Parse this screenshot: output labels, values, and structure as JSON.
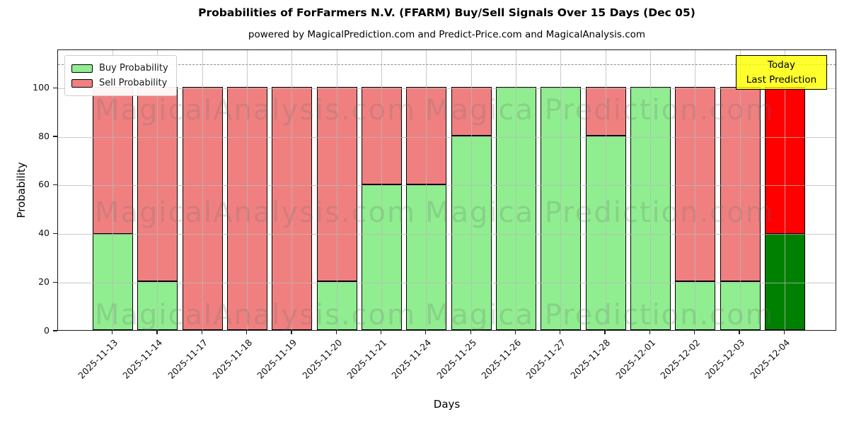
{
  "chart_data": {
    "type": "bar",
    "stacked": true,
    "title": "Probabilities of ForFarmers N.V. (FFARM) Buy/Sell Signals Over 15 Days (Dec 05)",
    "subtitle": "powered by MagicalPrediction.com and Predict-Price.com and MagicalAnalysis.com",
    "xlabel": "Days",
    "ylabel": "Probability",
    "ylim": [
      0,
      115.8
    ],
    "yticks": [
      0,
      20,
      40,
      60,
      80,
      100
    ],
    "grid": true,
    "dashed_line_y": 110,
    "legend_position": "top-left",
    "categories": [
      "2025-11-13",
      "2025-11-14",
      "2025-11-17",
      "2025-11-18",
      "2025-11-19",
      "2025-11-20",
      "2025-11-21",
      "2025-11-24",
      "2025-11-25",
      "2025-11-26",
      "2025-11-27",
      "2025-11-28",
      "2025-12-01",
      "2025-12-02",
      "2025-12-03",
      "2025-12-04"
    ],
    "series": [
      {
        "name": "Buy Probability",
        "color": "#90ee90",
        "values": [
          39.5,
          20,
          0,
          0,
          0,
          20,
          60,
          60,
          80,
          100,
          100,
          80,
          100,
          20,
          20,
          39.5
        ]
      },
      {
        "name": "Sell Probability",
        "color": "#f08080",
        "values": [
          60.5,
          80,
          100,
          100,
          100,
          80,
          40,
          40,
          20,
          0,
          0,
          20,
          0,
          80,
          80,
          60.5
        ]
      }
    ],
    "today": {
      "index": 15,
      "buy_color": "#008000",
      "sell_color": "#ff0000"
    },
    "annotation": {
      "lines": [
        "Today",
        "Last Prediction"
      ],
      "bg_color": "#ffff00"
    },
    "watermarks": [
      "MagicalAnalysis.com",
      "Magica Prediction.com"
    ]
  }
}
